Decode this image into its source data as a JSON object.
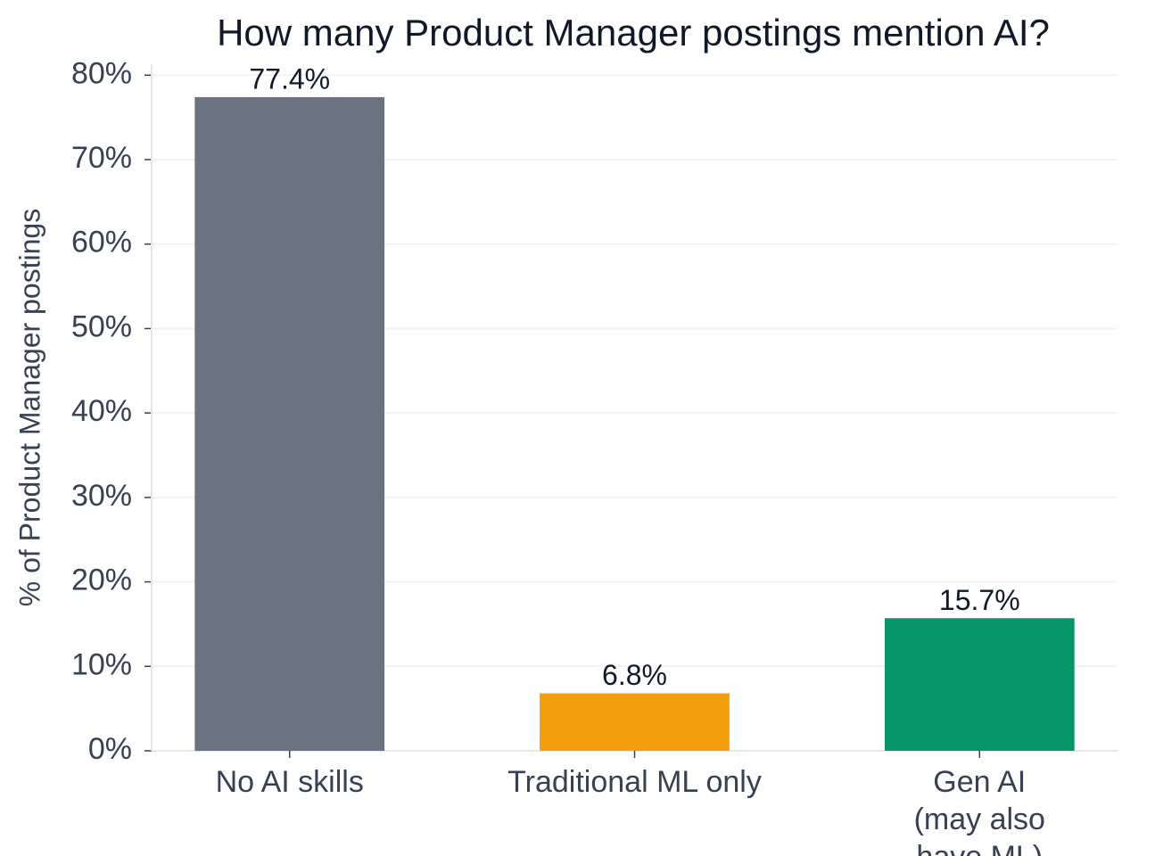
{
  "chart_data": {
    "type": "bar",
    "title": "How many Product Manager postings mention AI?",
    "ylabel": "% of Product Manager postings",
    "categories": [
      "No AI skills",
      "Traditional ML only",
      "Gen AI\n(may also have ML)"
    ],
    "values": [
      77.4,
      6.8,
      15.7
    ],
    "value_labels": [
      "77.4%",
      "6.8%",
      "15.7%"
    ],
    "colors": [
      "#6b7280",
      "#f29e0d",
      "#069669"
    ],
    "ylim": [
      0,
      81.3
    ],
    "yticks": [
      {
        "value": 0,
        "label": "0%"
      },
      {
        "value": 10,
        "label": "10%"
      },
      {
        "value": 20,
        "label": "20%"
      },
      {
        "value": 30,
        "label": "30%"
      },
      {
        "value": 40,
        "label": "40%"
      },
      {
        "value": 50,
        "label": "50%"
      },
      {
        "value": 60,
        "label": "60%"
      },
      {
        "value": 70,
        "label": "70%"
      },
      {
        "value": 80,
        "label": "80%"
      }
    ],
    "grid": true
  }
}
